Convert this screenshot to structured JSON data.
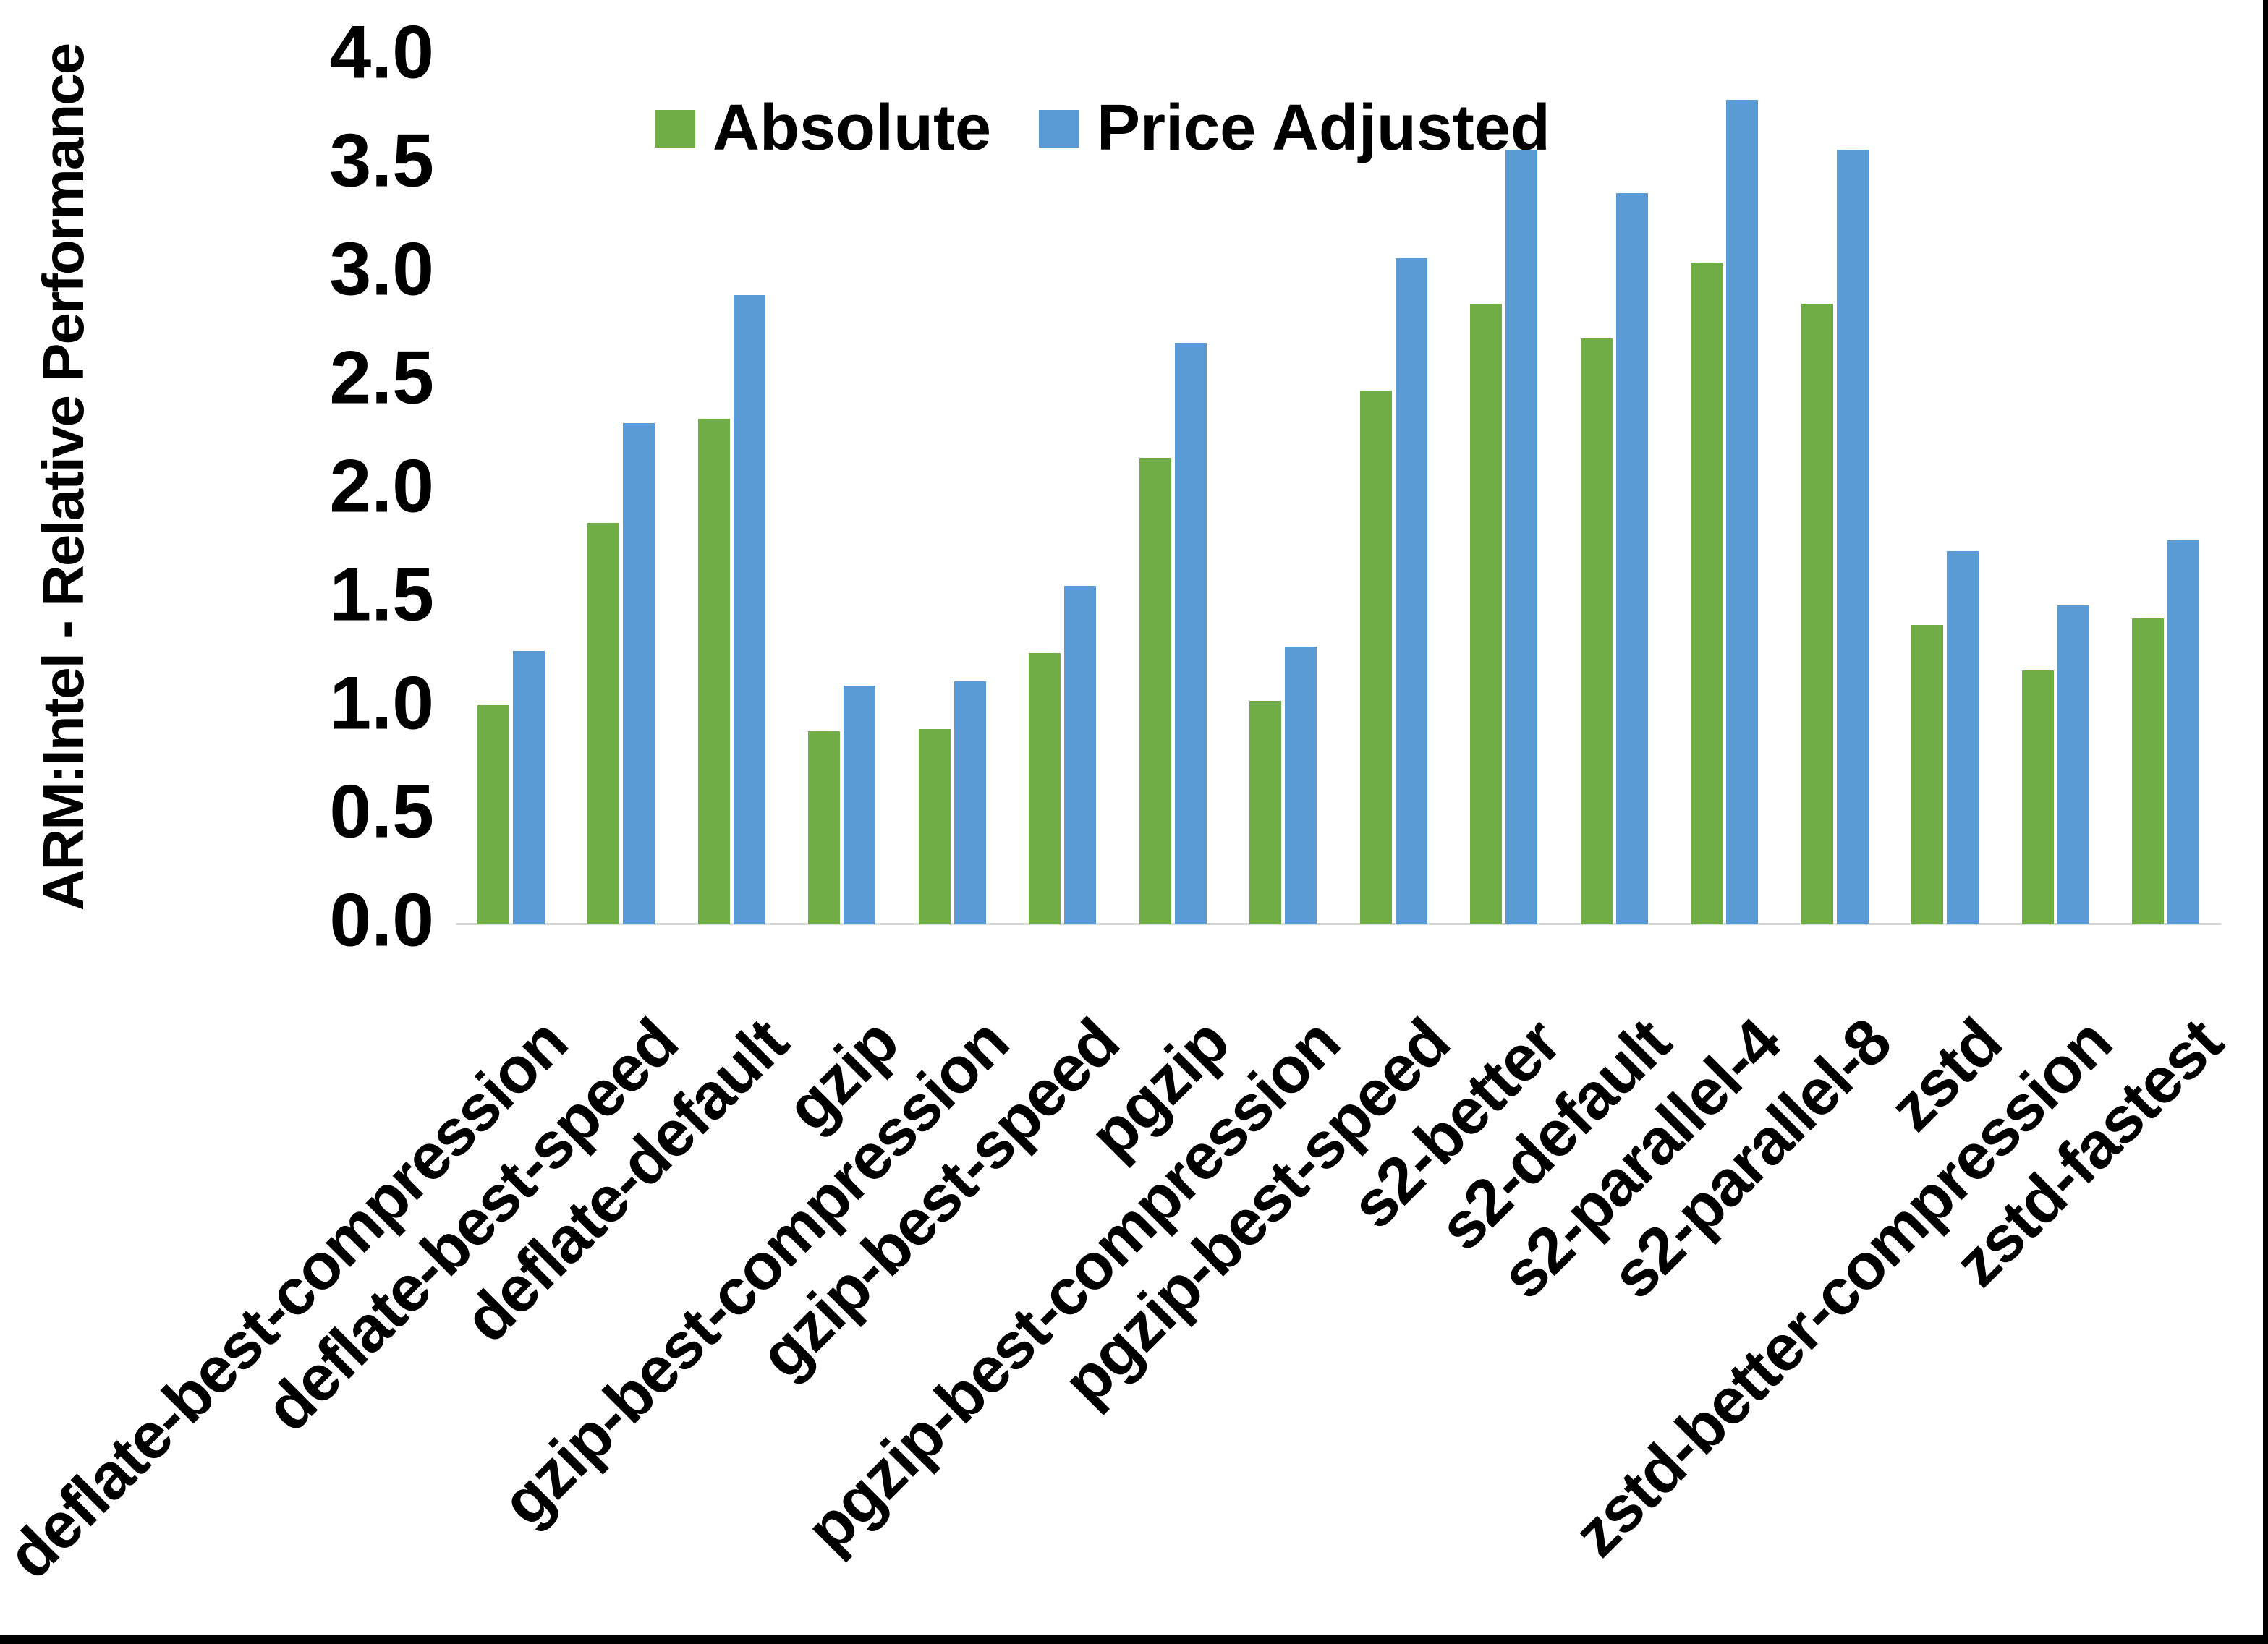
{
  "frame": {
    "background": "#FFFFFF",
    "right_border_color": "#000000",
    "bottom_border_color": "#000000"
  },
  "axis": {
    "line_color": "#D9D9D9",
    "ytick_labels": [
      "0.0",
      "0.5",
      "1.0",
      "1.5",
      "2.0",
      "2.5",
      "3.0",
      "3.5",
      "4.0"
    ]
  },
  "legend": {
    "items": [
      {
        "label": "Absolute",
        "color": "#70AD47"
      },
      {
        "label": "Price Adjusted",
        "color": "#5B9BD5"
      }
    ]
  },
  "chart_data": {
    "type": "bar",
    "title": "",
    "xlabel": "",
    "ylabel": "ARM:Intel - Relative Performance",
    "ylim": [
      0.0,
      4.0
    ],
    "ytick_step": 0.5,
    "grid": false,
    "legend_position": "top",
    "categories": [
      "deflate-best-compression",
      "deflate-best-speed",
      "deflate-default",
      "gzip",
      "gzip-best-compression",
      "gzip-best-speed",
      "pgzip",
      "pgzip-best-compression",
      "pgzip-best-speed",
      "s2-better",
      "s2-default",
      "s2-parallel-4",
      "s2-parallel-8",
      "zstd",
      "zstd-better-compression",
      "zstd-fastest"
    ],
    "series": [
      {
        "name": "Absolute",
        "color": "#70AD47",
        "values": [
          1.01,
          1.85,
          2.33,
          0.89,
          0.9,
          1.25,
          2.15,
          1.03,
          2.46,
          2.86,
          2.7,
          3.05,
          2.86,
          1.38,
          1.17,
          1.41
        ]
      },
      {
        "name": "Price Adjusted",
        "color": "#5B9BD5",
        "values": [
          1.26,
          2.31,
          2.9,
          1.1,
          1.12,
          1.56,
          2.68,
          1.28,
          3.07,
          3.57,
          3.37,
          3.8,
          3.57,
          1.72,
          1.47,
          1.77
        ]
      }
    ]
  }
}
